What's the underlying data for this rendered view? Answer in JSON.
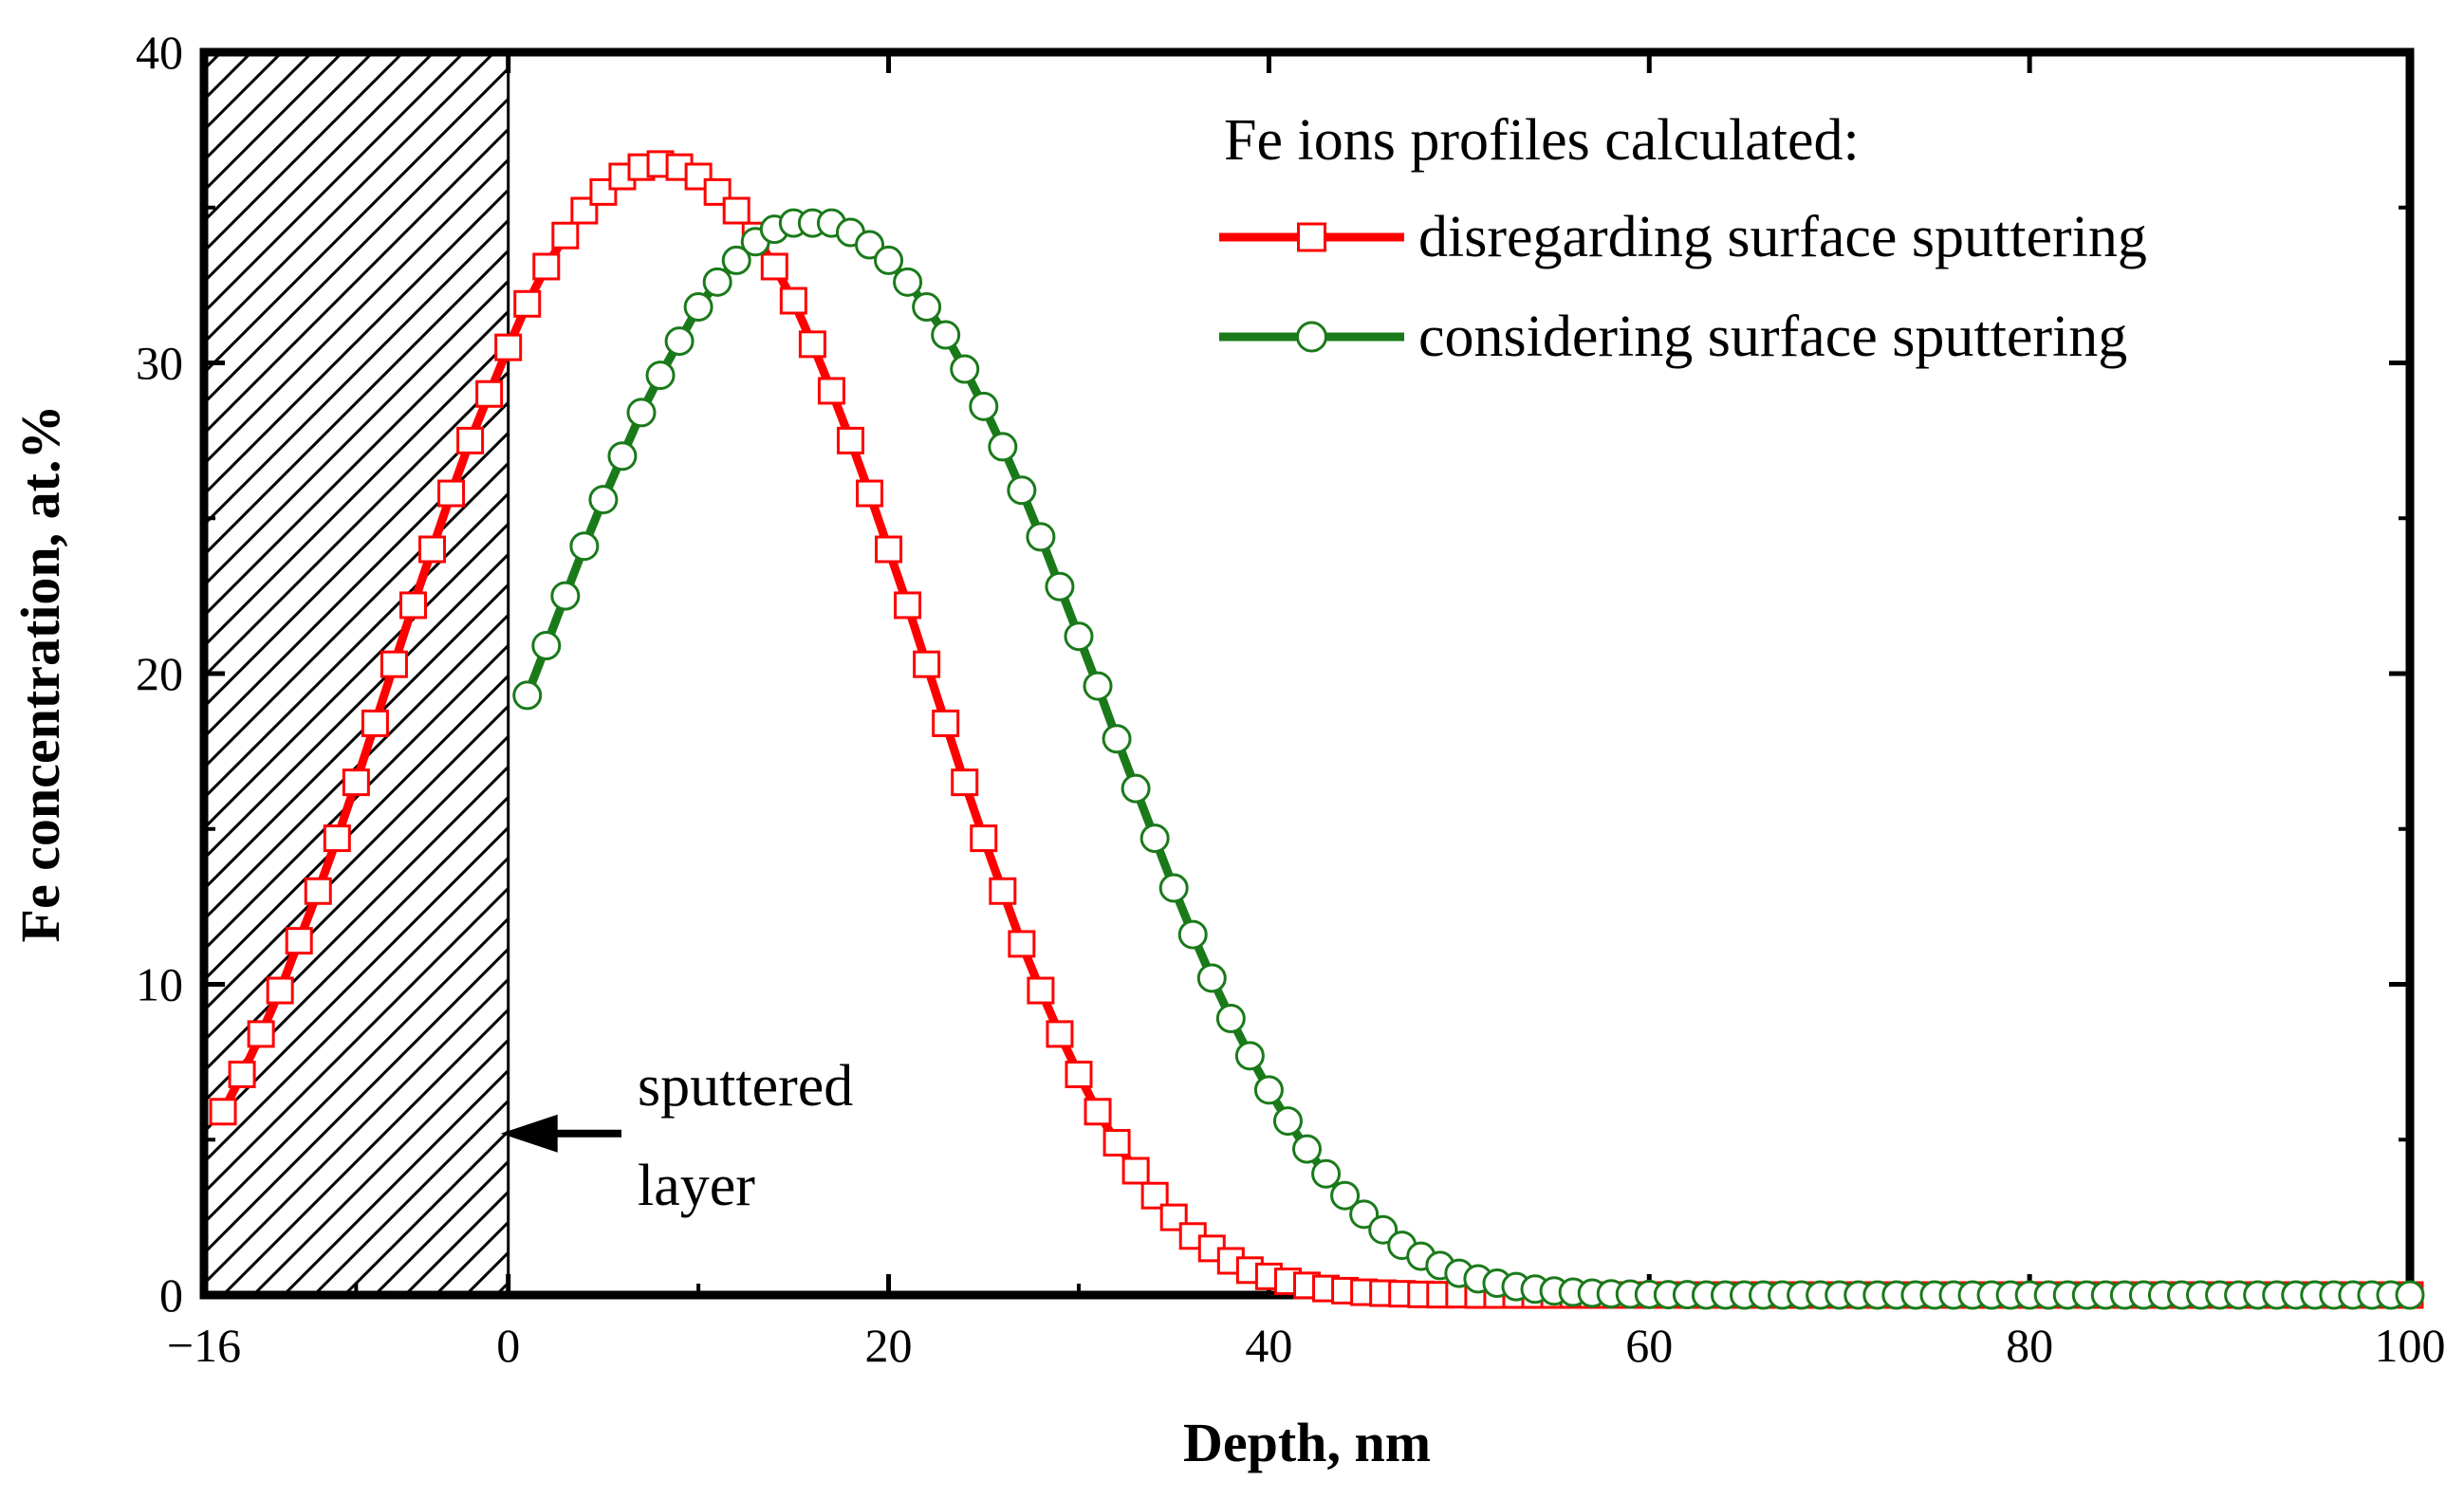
{
  "chart_data": {
    "type": "line",
    "title": "",
    "xlabel": "Depth, nm",
    "ylabel": "Fe concentration, at.%",
    "xlim": [
      -16,
      100
    ],
    "ylim": [
      0,
      40
    ],
    "x_ticks": [
      -16,
      0,
      20,
      40,
      60,
      80,
      100
    ],
    "x_tick_labels": [
      "−16",
      "0",
      "20",
      "40",
      "60",
      "80",
      "100"
    ],
    "y_ticks": [
      0,
      10,
      20,
      30,
      40
    ],
    "y_tick_labels": [
      "0",
      "10",
      "20",
      "30",
      "40"
    ],
    "legend": {
      "title": "Fe ions profiles calculated:",
      "position": "top-right"
    },
    "series": [
      {
        "name": "disregarding surface sputtering",
        "color": "#ff0000",
        "marker": "square",
        "x": [
          -15,
          -14,
          -13,
          -12,
          -11,
          -10,
          -9,
          -8,
          -7,
          -6,
          -5,
          -4,
          -3,
          -2,
          -1,
          0,
          1,
          2,
          3,
          4,
          5,
          6,
          7,
          8,
          9,
          10,
          11,
          12,
          13,
          14,
          15,
          16,
          17,
          18,
          19,
          20,
          21,
          22,
          23,
          24,
          25,
          26,
          27,
          28,
          29,
          30,
          31,
          32,
          33,
          34,
          35,
          36,
          37,
          38,
          39,
          40,
          41,
          42,
          43,
          44,
          45,
          46,
          47,
          48,
          49,
          50,
          51,
          52,
          53,
          54,
          55,
          56,
          57,
          58,
          59,
          60,
          61,
          62,
          63,
          64,
          65,
          66,
          67,
          68,
          69,
          70,
          71,
          72,
          73,
          74,
          75,
          76,
          77,
          78,
          79,
          80,
          81,
          82,
          83,
          84,
          85,
          86,
          87,
          88,
          89,
          90,
          91,
          92,
          93,
          94,
          95,
          96,
          97,
          98,
          99,
          100
        ],
        "y": [
          5.9,
          7.1,
          8.4,
          9.8,
          11.4,
          13.0,
          14.7,
          16.5,
          18.4,
          20.3,
          22.2,
          24.0,
          25.8,
          27.5,
          29.0,
          30.5,
          31.9,
          33.1,
          34.1,
          34.9,
          35.5,
          36.0,
          36.3,
          36.4,
          36.3,
          36.0,
          35.5,
          34.9,
          34.1,
          33.1,
          32.0,
          30.6,
          29.1,
          27.5,
          25.8,
          24.0,
          22.2,
          20.3,
          18.4,
          16.5,
          14.7,
          13.0,
          11.3,
          9.8,
          8.4,
          7.1,
          5.9,
          4.9,
          4.0,
          3.2,
          2.5,
          1.9,
          1.5,
          1.1,
          0.8,
          0.6,
          0.44,
          0.31,
          0.21,
          0.14,
          0.09,
          0.06,
          0.04,
          0.02,
          0.01,
          0.01,
          0,
          0,
          0,
          0,
          0,
          0,
          0,
          0,
          0,
          0,
          0,
          0,
          0,
          0,
          0,
          0,
          0,
          0,
          0,
          0,
          0,
          0,
          0,
          0,
          0,
          0,
          0,
          0,
          0,
          0,
          0,
          0,
          0,
          0,
          0,
          0,
          0,
          0,
          0,
          0,
          0,
          0,
          0,
          0,
          0,
          0,
          0,
          0,
          0,
          0
        ]
      },
      {
        "name": "considering surface sputtering",
        "color": "#1a7a1a",
        "marker": "circle",
        "x": [
          1,
          2,
          3,
          4,
          5,
          6,
          7,
          8,
          9,
          10,
          11,
          12,
          13,
          14,
          15,
          16,
          17,
          18,
          19,
          20,
          21,
          22,
          23,
          24,
          25,
          26,
          27,
          28,
          29,
          30,
          31,
          32,
          33,
          34,
          35,
          36,
          37,
          38,
          39,
          40,
          41,
          42,
          43,
          44,
          45,
          46,
          47,
          48,
          49,
          50,
          51,
          52,
          53,
          54,
          55,
          56,
          57,
          58,
          59,
          60,
          61,
          62,
          63,
          64,
          65,
          66,
          67,
          68,
          69,
          70,
          71,
          72,
          73,
          74,
          75,
          76,
          77,
          78,
          79,
          80,
          81,
          82,
          83,
          84,
          85,
          86,
          87,
          88,
          89,
          90,
          91,
          92,
          93,
          94,
          95,
          96,
          97,
          98,
          99,
          100
        ],
        "y": [
          19.3,
          20.9,
          22.5,
          24.1,
          25.6,
          27.0,
          28.4,
          29.6,
          30.7,
          31.8,
          32.6,
          33.3,
          33.9,
          34.3,
          34.5,
          34.5,
          34.5,
          34.2,
          33.8,
          33.3,
          32.6,
          31.8,
          30.9,
          29.8,
          28.6,
          27.3,
          25.9,
          24.4,
          22.8,
          21.2,
          19.6,
          17.9,
          16.3,
          14.7,
          13.1,
          11.6,
          10.2,
          8.9,
          7.7,
          6.6,
          5.6,
          4.7,
          3.9,
          3.2,
          2.6,
          2.1,
          1.6,
          1.25,
          0.95,
          0.7,
          0.52,
          0.38,
          0.27,
          0.19,
          0.13,
          0.09,
          0.06,
          0.04,
          0.03,
          0.02,
          0.01,
          0.01,
          0,
          0,
          0,
          0,
          0,
          0,
          0,
          0,
          0,
          0,
          0,
          0,
          0,
          0,
          0,
          0,
          0,
          0,
          0,
          0,
          0,
          0,
          0,
          0,
          0,
          0,
          0,
          0,
          0,
          0,
          0,
          0,
          0,
          0,
          0,
          0,
          0,
          0
        ]
      }
    ],
    "annotations": [
      {
        "text_line1": "sputtered",
        "text_line2": "layer",
        "x": 0,
        "y": 5.2
      }
    ],
    "shaded_region": {
      "x_from": -16,
      "x_to": 0,
      "pattern": "hatched",
      "label": "sputtered layer"
    }
  }
}
